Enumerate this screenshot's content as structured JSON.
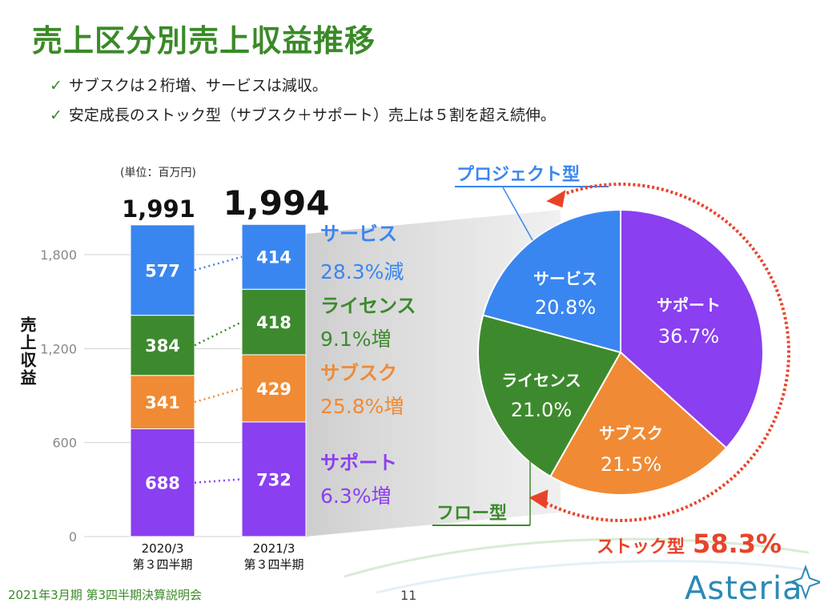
{
  "title": "売上区分別売上収益推移",
  "bullets": [
    "サブスクは２桁増、サービスは減収。",
    "安定成長のストック型（サブスク＋サポート）売上は５割を超え続伸。"
  ],
  "unit": "(単位：百万円)",
  "ylabel": "売上収益",
  "colors": {
    "service": "#3a86f0",
    "license": "#3d8a2e",
    "subscription": "#f08a34",
    "support": "#8a3ff0",
    "title": "#3a8a28",
    "stock": "#e8432a"
  },
  "chart_data": [
    {
      "type": "bar",
      "stacked": true,
      "categories": [
        "2020/3\n第３四半期",
        "2021/3\n第３四半期"
      ],
      "category_lines": [
        [
          "2020/3",
          "第３四半期"
        ],
        [
          "2021/3",
          "第３四半期"
        ]
      ],
      "totals": [
        "1,991",
        "1,994"
      ],
      "ylabel": "売上収益",
      "ylim": [
        0,
        2000
      ],
      "yticks": [
        0,
        600,
        1200,
        1800
      ],
      "ytick_labels": [
        "0",
        "600",
        "1,200",
        "1,800"
      ],
      "grid": true,
      "series": [
        {
          "name": "サポート",
          "key": "support",
          "values": [
            688,
            732
          ],
          "change": "6.3%増"
        },
        {
          "name": "サブスク",
          "key": "subscription",
          "values": [
            341,
            429
          ],
          "change": "25.8%増"
        },
        {
          "name": "ライセンス",
          "key": "license",
          "values": [
            384,
            418
          ],
          "change": "9.1%増"
        },
        {
          "name": "サービス",
          "key": "service",
          "values": [
            577,
            414
          ],
          "change": "28.3%減"
        }
      ]
    },
    {
      "type": "pie",
      "labels": [
        "サポート",
        "サブスク",
        "ライセンス",
        "サービス"
      ],
      "keys": [
        "support",
        "subscription",
        "license",
        "service"
      ],
      "values": [
        36.7,
        21.5,
        21.0,
        20.8
      ],
      "value_labels": [
        "36.7%",
        "21.5%",
        "21.0%",
        "20.8%"
      ],
      "group_labels": {
        "project": "プロジェクト型",
        "flow": "フロー型"
      },
      "stock": {
        "label": "ストック型",
        "value": "58.3%"
      }
    }
  ],
  "footer": {
    "left": "2021年3月期 第3四半期決算説明会",
    "page": "11",
    "logo": "Asteria"
  }
}
